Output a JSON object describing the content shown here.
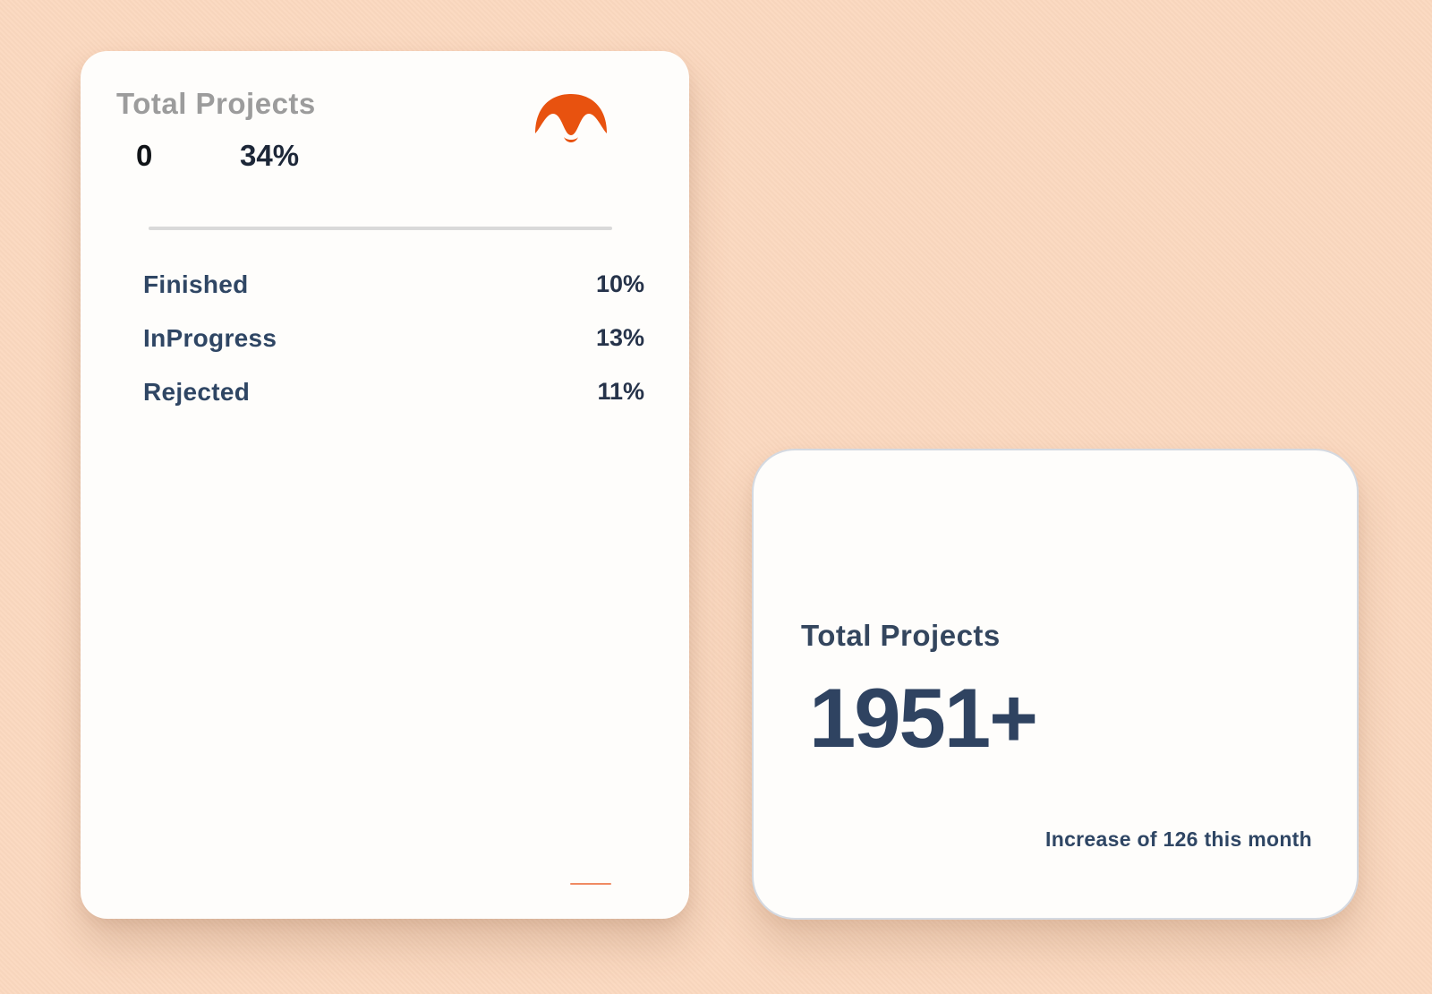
{
  "colors": {
    "background": "#fbd8bf",
    "card": "#fefdfb",
    "accent": "#e8520f",
    "muted_title": "#9c9c9c",
    "navy_text": "#2f4664"
  },
  "left_card": {
    "title": "Total Projects",
    "count": "0",
    "percent": "34%",
    "logo_icon": "orange-wave-logo-icon",
    "stats": [
      {
        "label": "Finished",
        "value": "10%"
      },
      {
        "label": "InProgress",
        "value": "13%"
      },
      {
        "label": "Rejected",
        "value": "11%"
      }
    ]
  },
  "right_card": {
    "title": "Total Projects",
    "value": "1951+",
    "subtitle": "Increase of 126 this month"
  }
}
